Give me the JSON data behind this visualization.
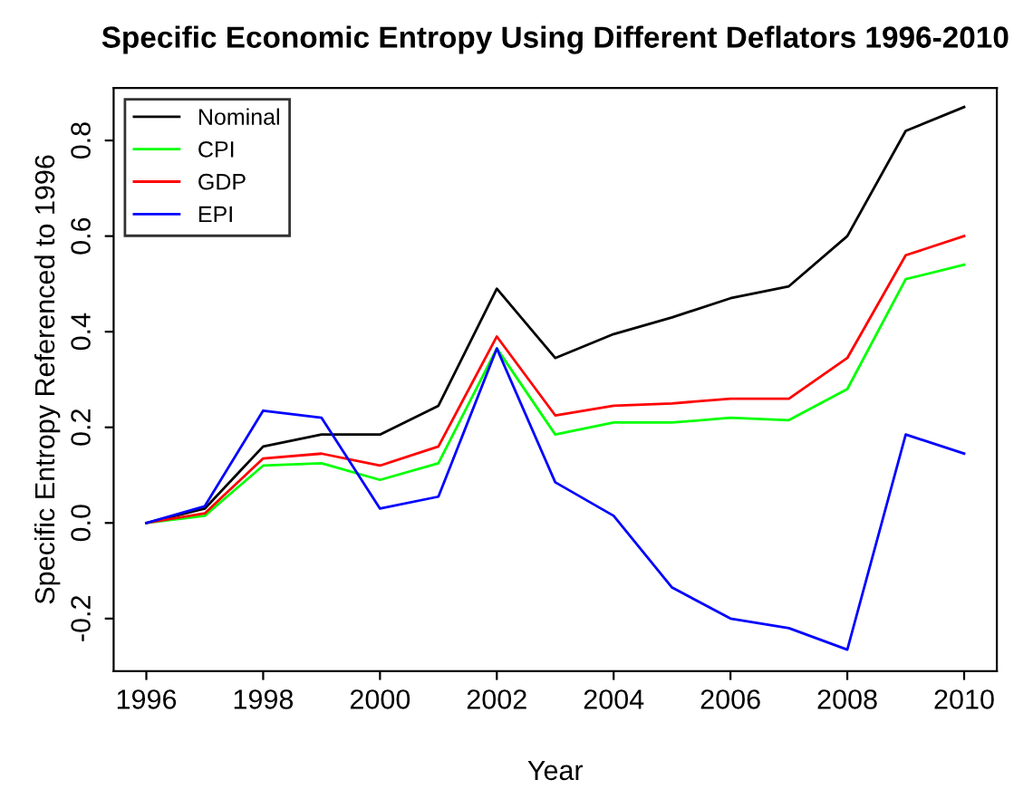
{
  "chart_data": {
    "type": "line",
    "title": "Specific Economic Entropy Using Different Deflators 1996-2010",
    "xlabel": "Year",
    "ylabel": "Specific Entropy Referenced to 1996",
    "x": [
      1996,
      1997,
      1998,
      1999,
      2000,
      2001,
      2002,
      2003,
      2004,
      2005,
      2006,
      2007,
      2008,
      2009,
      2010
    ],
    "series": [
      {
        "name": "Nominal",
        "color": "#000000",
        "values": [
          0,
          0.03,
          0.16,
          0.185,
          0.185,
          0.245,
          0.49,
          0.345,
          0.395,
          0.43,
          0.47,
          0.495,
          0.6,
          0.82,
          0.87
        ]
      },
      {
        "name": "CPI",
        "color": "#00ff00",
        "values": [
          0,
          0.015,
          0.12,
          0.125,
          0.09,
          0.125,
          0.365,
          0.185,
          0.21,
          0.21,
          0.22,
          0.215,
          0.28,
          0.51,
          0.54
        ]
      },
      {
        "name": "GDP",
        "color": "#ff0000",
        "values": [
          0,
          0.02,
          0.135,
          0.145,
          0.12,
          0.16,
          0.39,
          0.225,
          0.245,
          0.25,
          0.26,
          0.26,
          0.345,
          0.56,
          0.6
        ]
      },
      {
        "name": "EPI",
        "color": "#0000ff",
        "values": [
          0,
          0.035,
          0.235,
          0.22,
          0.03,
          0.055,
          0.365,
          0.085,
          0.015,
          -0.135,
          -0.2,
          -0.22,
          -0.265,
          0.185,
          0.145
        ]
      }
    ],
    "xlim": [
      1995.44,
      2010.56
    ],
    "ylim": [
      -0.31,
      0.91
    ],
    "xticks": [
      1996,
      1998,
      2000,
      2002,
      2004,
      2006,
      2008,
      2010
    ],
    "yticks": [
      {
        "value": -0.2,
        "label": "-0.2"
      },
      {
        "value": 0,
        "label": "0.0"
      },
      {
        "value": 0.2,
        "label": "0.2"
      },
      {
        "value": 0.4,
        "label": "0.4"
      },
      {
        "value": 0.6,
        "label": "0.6"
      },
      {
        "value": 0.8,
        "label": "0.8"
      }
    ],
    "grid": false,
    "legend": "top left",
    "marker": "none",
    "line_style": "solid"
  }
}
